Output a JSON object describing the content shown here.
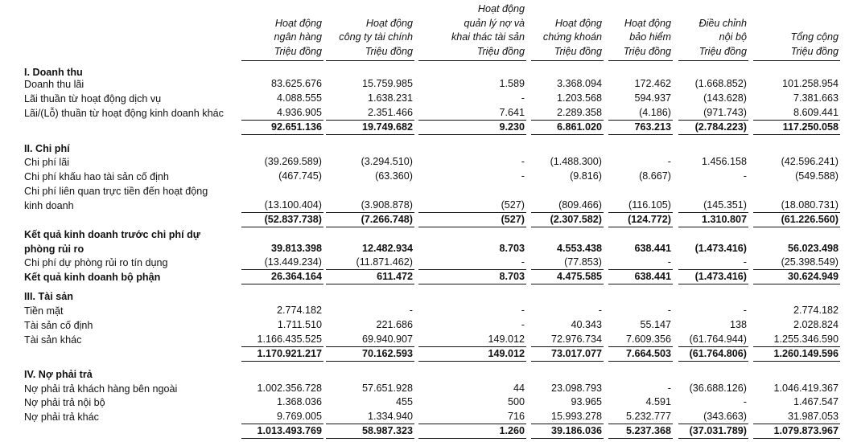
{
  "columns": [
    {
      "lines": [
        "Hoạt động",
        "ngân hàng",
        "Triệu đồng"
      ]
    },
    {
      "lines": [
        "Hoạt động",
        "công ty tài chính",
        "Triệu đồng"
      ]
    },
    {
      "lines": [
        "Hoạt động",
        "quản lý nợ và",
        "khai thác tài sản",
        "Triệu đồng"
      ]
    },
    {
      "lines": [
        "Hoạt động",
        "chứng khoán",
        "Triệu đồng"
      ]
    },
    {
      "lines": [
        "Hoạt động",
        "bảo hiểm",
        "Triệu đồng"
      ]
    },
    {
      "lines": [
        "Điều chỉnh",
        "nội bộ",
        "Triệu đồng"
      ]
    },
    {
      "lines": [
        "Tổng cộng",
        "Triệu đồng"
      ]
    }
  ],
  "rows": [
    {
      "label": "I. Doanh thu",
      "style": "heading"
    },
    {
      "label": "Doanh thu lãi",
      "values": [
        "83.625.676",
        "15.759.985",
        "1.589",
        "3.368.094",
        "172.462",
        "(1.668.852)",
        "101.258.954"
      ]
    },
    {
      "label": "Lãi thuần từ hoạt động dịch vụ",
      "values": [
        "4.088.555",
        "1.638.231",
        "-",
        "1.203.568",
        "594.937",
        "(143.628)",
        "7.381.663"
      ]
    },
    {
      "label": "Lãi/(Lỗ) thuần từ hoạt động kinh doanh khác",
      "values": [
        "4.936.905",
        "2.351.466",
        "7.641",
        "2.289.358",
        "(4.186)",
        "(971.743)",
        "8.609.441"
      ]
    },
    {
      "label": "",
      "style": "total",
      "values": [
        "92.651.136",
        "19.749.682",
        "9.230",
        "6.861.020",
        "763.213",
        "(2.784.223)",
        "117.250.058"
      ]
    },
    {
      "label": "II. Chi phí",
      "style": "heading"
    },
    {
      "label": "Chi phí lãi",
      "values": [
        "(39.269.589)",
        "(3.294.510)",
        "-",
        "(1.488.300)",
        "-",
        "1.456.158",
        "(42.596.241)"
      ]
    },
    {
      "label": "Chi phí khấu hao tài sản cố định",
      "values": [
        "(467.745)",
        "(63.360)",
        "-",
        "(9.816)",
        "(8.667)",
        "-",
        "(549.588)"
      ]
    },
    {
      "label": "Chi phí liên quan trực tiền đến hoạt động"
    },
    {
      "label": "kinh doanh",
      "values": [
        "(13.100.404)",
        "(3.908.878)",
        "(527)",
        "(809.466)",
        "(116.105)",
        "(145.351)",
        "(18.080.731)"
      ]
    },
    {
      "label": "",
      "style": "total",
      "values": [
        "(52.837.738)",
        "(7.266.748)",
        "(527)",
        "(2.307.582)",
        "(124.772)",
        "1.310.807",
        "(61.226.560)"
      ]
    },
    {
      "label": "Kết quả kinh doanh trước chi phí dự",
      "style": "bold"
    },
    {
      "label": "phòng rủi ro",
      "style": "bold",
      "values": [
        "39.813.398",
        "12.482.934",
        "8.703",
        "4.553.438",
        "638.441",
        "(1.473.416)",
        "56.023.498"
      ]
    },
    {
      "label": "Chi phí dự phòng rủi ro tín dụng",
      "values": [
        "(13.449.234)",
        "(11.871.462)",
        "-",
        "(77.853)",
        "-",
        "-",
        "(25.398.549)"
      ]
    },
    {
      "label": "Kết quả kinh doanh bộ phận",
      "style": "total",
      "values": [
        "26.364.164",
        "611.472",
        "8.703",
        "4.475.585",
        "638.441",
        "(1.473.416)",
        "30.624.949"
      ]
    },
    {
      "label": "III. Tài sản",
      "style": "heading"
    },
    {
      "label": "Tiền mặt",
      "values": [
        "2.774.182",
        "-",
        "-",
        "-",
        "-",
        "-",
        "2.774.182"
      ]
    },
    {
      "label": "Tài sản cố định",
      "values": [
        "1.711.510",
        "221.686",
        "-",
        "40.343",
        "55.147",
        "138",
        "2.028.824"
      ]
    },
    {
      "label": "Tài sản khác",
      "values": [
        "1.166.435.525",
        "69.940.907",
        "149.012",
        "72.976.734",
        "7.609.356",
        "(61.764.944)",
        "1.255.346.590"
      ]
    },
    {
      "label": "",
      "style": "total",
      "values": [
        "1.170.921.217",
        "70.162.593",
        "149.012",
        "73.017.077",
        "7.664.503",
        "(61.764.806)",
        "1.260.149.596"
      ]
    },
    {
      "label": "IV. Nợ phải trả",
      "style": "heading"
    },
    {
      "label": "Nợ phải trả khách hàng bên ngoài",
      "values": [
        "1.002.356.728",
        "57.651.928",
        "44",
        "23.098.793",
        "-",
        "(36.688.126)",
        "1.046.419.367"
      ]
    },
    {
      "label": "Nợ phải trả nội bộ",
      "values": [
        "1.368.036",
        "455",
        "500",
        "93.965",
        "4.591",
        "-",
        "1.467.547"
      ]
    },
    {
      "label": "Nợ phải trả khác",
      "values": [
        "9.769.005",
        "1.334.940",
        "716",
        "15.993.278",
        "5.232.777",
        "(343.663)",
        "31.987.053"
      ]
    },
    {
      "label": "",
      "style": "total",
      "values": [
        "1.013.493.769",
        "58.987.323",
        "1.260",
        "39.186.036",
        "5.237.368",
        "(37.031.789)",
        "1.079.873.967"
      ]
    }
  ]
}
